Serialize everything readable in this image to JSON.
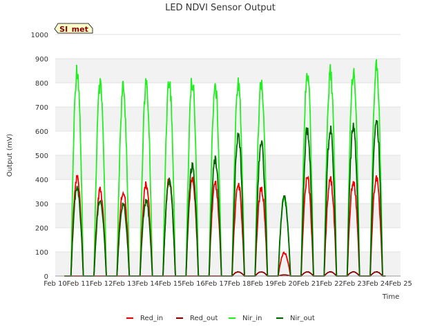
{
  "chart_data": {
    "type": "line",
    "title": "LED NDVI Sensor Output",
    "xlabel": "Time",
    "ylabel": "Output (mV)",
    "site_label": "SI_met",
    "xlim": [
      10,
      25
    ],
    "ylim": [
      0,
      1000
    ],
    "x_ticks": [
      10,
      11,
      12,
      13,
      14,
      15,
      16,
      17,
      18,
      19,
      20,
      21,
      22,
      23,
      24,
      25
    ],
    "x_tick_labels": [
      "Feb 10",
      "Feb 11",
      "Feb 12",
      "Feb 13",
      "Feb 14",
      "Feb 15",
      "Feb 16",
      "Feb 17",
      "Feb 18",
      "Feb 19",
      "Feb 20",
      "Feb 21",
      "Feb 22",
      "Feb 23",
      "Feb 24",
      "Feb 25"
    ],
    "y_ticks": [
      0,
      100,
      200,
      300,
      400,
      500,
      600,
      700,
      800,
      900,
      1000
    ],
    "y_tick_labels": [
      "0",
      "100",
      "200",
      "300",
      "400",
      "500",
      "600",
      "700",
      "800",
      "900",
      "1000"
    ],
    "grid": true,
    "legend_position": "bottom",
    "days": [
      11,
      12,
      13,
      14,
      15,
      16,
      17,
      18,
      19,
      20,
      21,
      22,
      23,
      24
    ],
    "series": [
      {
        "name": "Red_in",
        "color": "#ee0000",
        "peaks": [
          425,
          370,
          370,
          395,
          415,
          415,
          395,
          395,
          380,
          100,
          420,
          420,
          410,
          420
        ]
      },
      {
        "name": "Red_out",
        "color": "#880000",
        "peaks": [
          0,
          0,
          0,
          0,
          0,
          0,
          0,
          18,
          18,
          5,
          18,
          18,
          18,
          18
        ]
      },
      {
        "name": "Nir_in",
        "color": "#22ee22",
        "peaks": [
          895,
          820,
          810,
          830,
          845,
          845,
          825,
          830,
          840,
          345,
          885,
          885,
          885,
          910
        ]
      },
      {
        "name": "Nir_out",
        "color": "#006600",
        "peaks": [
          380,
          330,
          310,
          325,
          410,
          475,
          500,
          600,
          570,
          340,
          635,
          640,
          645,
          665
        ]
      }
    ]
  }
}
